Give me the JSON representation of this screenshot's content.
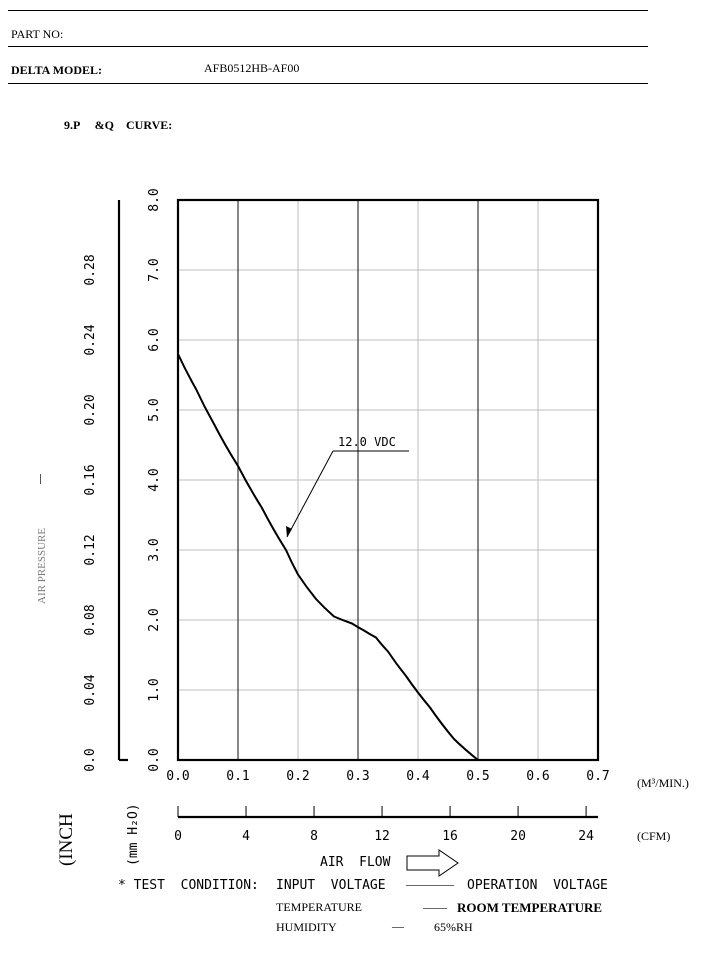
{
  "header": {
    "part_no_label": "PART  NO:",
    "model_label": "DELTA MODEL:",
    "model_value": "AFB0512HB-AF00",
    "section_title": "9.P     &Q    CURVE:"
  },
  "chart_data": {
    "type": "line",
    "title": "",
    "series": [
      {
        "name": "12.0  VDC",
        "x": [
          0.0,
          0.03,
          0.06,
          0.1,
          0.14,
          0.18,
          0.2,
          0.23,
          0.26,
          0.29,
          0.31,
          0.33,
          0.35,
          0.38,
          0.42,
          0.46,
          0.5,
          0.505
        ],
        "y": [
          5.8,
          5.3,
          4.8,
          4.2,
          3.6,
          3.0,
          2.65,
          2.3,
          2.05,
          1.95,
          1.85,
          1.75,
          1.55,
          1.2,
          0.75,
          0.3,
          0.0,
          0.0
        ]
      }
    ],
    "x_axis": {
      "label": "AIR  FLOW",
      "unit": "(M³/MIN.)",
      "ticks": [
        "0.0",
        "0.1",
        "0.2",
        "0.3",
        "0.4",
        "0.5",
        "0.6",
        "0.7"
      ],
      "xlim": [
        0,
        0.7
      ]
    },
    "x_axis_cfm": {
      "unit": "(CFM)",
      "ticks": [
        "0",
        "4",
        "8",
        "12",
        "16",
        "20",
        "24"
      ],
      "xlim": [
        0,
        24
      ]
    },
    "y_axis_mm": {
      "label": "(mm  H₂O)",
      "ticks": [
        "0.0",
        "1.0",
        "2.0",
        "3.0",
        "4.0",
        "5.0",
        "6.0",
        "7.0",
        "8.0"
      ],
      "ylim": [
        0,
        8
      ]
    },
    "y_axis_inch": {
      "label": "AIR      PRESSURE",
      "unit": "(INCH",
      "ticks": [
        "0.0",
        "0.04",
        "0.08",
        "0.12",
        "0.16",
        "0.20",
        "0.24",
        "0.28"
      ],
      "ylim": [
        0,
        0.32
      ]
    },
    "annotation": "12.0  VDC",
    "grid": true
  },
  "test_condition": {
    "label": "* TEST  CONDITION:",
    "rows": [
      {
        "name": "INPUT  VOLTAGE",
        "dash": "————",
        "value": "OPERATION  VOLTAGE"
      },
      {
        "name": "TEMPERATURE",
        "dash": "——",
        "value": "ROOM TEMPERATURE"
      },
      {
        "name": "HUMIDITY",
        "dash": "—",
        "value": "65%RH"
      }
    ]
  },
  "colors": {
    "ink": "#000000",
    "grid": "#7f7f7f",
    "faint_text": "#7a7a7a"
  }
}
